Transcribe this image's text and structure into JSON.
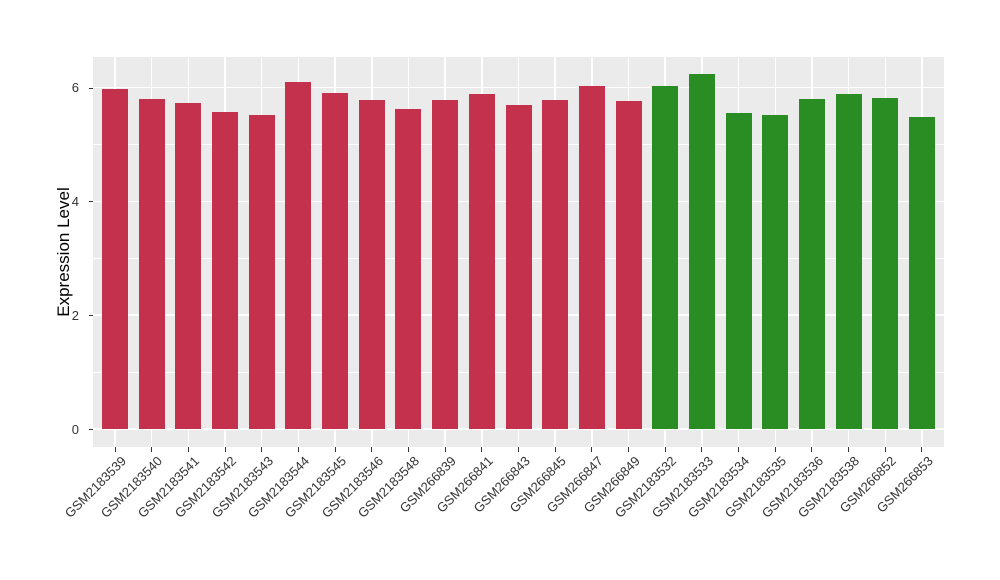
{
  "chart_data": {
    "type": "bar",
    "title": "",
    "xlabel": "",
    "ylabel": "Expression Level",
    "ylim": [
      0,
      6.55
    ],
    "yticks": [
      0,
      2,
      4,
      6
    ],
    "yminorticks": [
      1,
      3,
      5
    ],
    "grid": "on",
    "legend_position": "none",
    "categories": [
      "GSM2183539",
      "GSM2183540",
      "GSM2183541",
      "GSM2183542",
      "GSM2183543",
      "GSM2183544",
      "GSM2183545",
      "GSM2183546",
      "GSM2183548",
      "GSM266839",
      "GSM266841",
      "GSM266843",
      "GSM266845",
      "GSM266847",
      "GSM266849",
      "GSM2183532",
      "GSM2183533",
      "GSM2183534",
      "GSM2183535",
      "GSM2183536",
      "GSM2183538",
      "GSM266852",
      "GSM266853"
    ],
    "values": [
      5.97,
      5.8,
      5.73,
      5.57,
      5.52,
      6.1,
      5.91,
      5.79,
      5.63,
      5.78,
      5.89,
      5.7,
      5.79,
      6.03,
      5.77,
      6.03,
      6.24,
      5.55,
      5.52,
      5.8,
      5.89,
      5.81,
      5.48
    ],
    "group_of_bar": [
      "group1",
      "group1",
      "group1",
      "group1",
      "group1",
      "group1",
      "group1",
      "group1",
      "group1",
      "group1",
      "group1",
      "group1",
      "group1",
      "group1",
      "group1",
      "group2",
      "group2",
      "group2",
      "group2",
      "group2",
      "group2",
      "group2",
      "group2"
    ],
    "group_colors": {
      "group1": "#C3314D",
      "group2": "#2A8D24"
    }
  },
  "style": {
    "figure_bg": "#FFFFFF",
    "panel_bg": "#EBEBEB",
    "grid_color": "#FFFFFF",
    "axis_text_color": "#333333",
    "axis_title_color": "#000000",
    "tick_color": "#333333"
  }
}
